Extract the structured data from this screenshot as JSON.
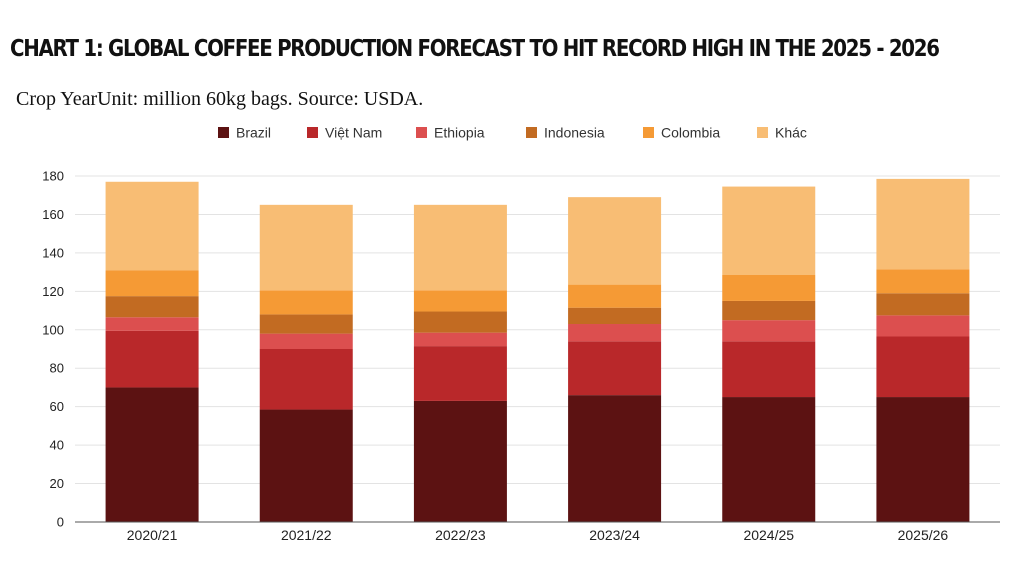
{
  "title": "CHART 1: GLOBAL COFFEE PRODUCTION FORECAST TO HIT RECORD HIGH IN THE 2025 - 2026",
  "subtitle": "Crop YearUnit: million 60kg bags. Source: USDA.",
  "chart_data": {
    "type": "bar",
    "stacked": true,
    "categories": [
      "2020/21",
      "2021/22",
      "2022/23",
      "2023/24",
      "2024/25",
      "2025/26"
    ],
    "series": [
      {
        "name": "Brazil",
        "color": "#5c1212",
        "values": [
          70,
          58.5,
          63,
          66,
          65,
          65
        ]
      },
      {
        "name": "Việt Nam",
        "color": "#b9282a",
        "values": [
          29.5,
          31.5,
          28.5,
          28,
          29,
          31.5
        ]
      },
      {
        "name": "Ethiopia",
        "color": "#dc4f4f",
        "values": [
          7,
          8,
          7,
          9,
          11,
          11
        ]
      },
      {
        "name": "Indonesia",
        "color": "#c26b22",
        "values": [
          11,
          10,
          11,
          8.5,
          10,
          11.5
        ]
      },
      {
        "name": "Colombia",
        "color": "#f59a35",
        "values": [
          13.5,
          12.5,
          11,
          12,
          13.5,
          12.5
        ]
      },
      {
        "name": "Khác",
        "color": "#f8bd74",
        "values": [
          46,
          44.5,
          44.5,
          45.5,
          46,
          47
        ]
      }
    ],
    "yticks": [
      0,
      20,
      40,
      60,
      80,
      100,
      120,
      140,
      160,
      180
    ],
    "ylim": [
      0,
      180
    ],
    "grid": true,
    "legend_position": "top"
  }
}
